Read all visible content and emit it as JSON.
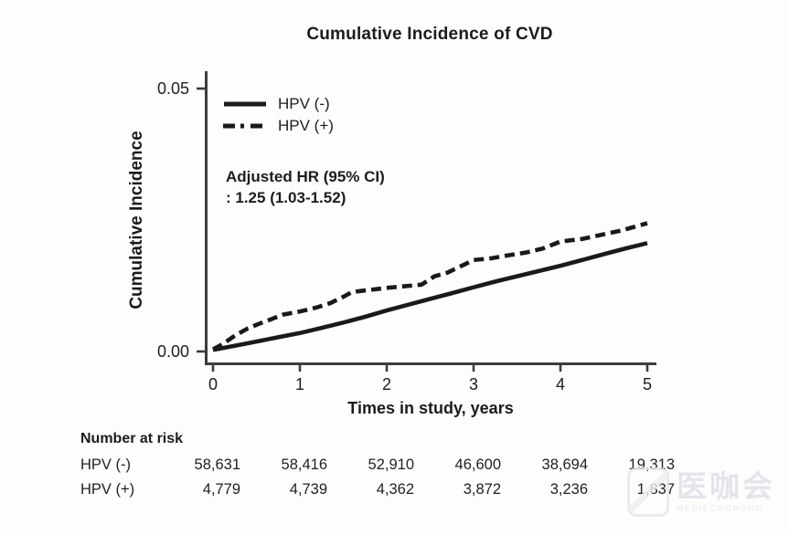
{
  "colors": {
    "background": "#fdfdfd",
    "curve": "#1a1a1a",
    "axis": "#3d3d3d",
    "text": "#1c1c1c",
    "watermark": "#e3e5ea"
  },
  "chart_data": {
    "type": "line",
    "title": "Cumulative Incidence of CVD",
    "xlabel": "Times in study, years",
    "ylabel": "Cumulative Incidence",
    "xlim": [
      0,
      5
    ],
    "ylim": [
      0,
      0.05
    ],
    "grid": false,
    "legend_position": "top-left-inside",
    "x_ticks": [
      0,
      1,
      2,
      3,
      4,
      5
    ],
    "y_ticks": [
      {
        "value": 0.0,
        "label": "0.00"
      },
      {
        "value": 0.05,
        "label": "0.05"
      }
    ],
    "annotation": [
      "Adjusted HR (95% CI)",
      ": 1.25 (1.03-1.52)"
    ],
    "series": [
      {
        "name": "HPV (-)",
        "style": "solid",
        "points": [
          [
            0,
            0.0003
          ],
          [
            0.25,
            0.0011
          ],
          [
            0.5,
            0.0019
          ],
          [
            0.75,
            0.0027
          ],
          [
            1.0,
            0.0035
          ],
          [
            1.25,
            0.0045
          ],
          [
            1.5,
            0.0055
          ],
          [
            1.75,
            0.0066
          ],
          [
            2.0,
            0.0078
          ],
          [
            2.25,
            0.0089
          ],
          [
            2.5,
            0.01
          ],
          [
            2.75,
            0.0111
          ],
          [
            3.0,
            0.0122
          ],
          [
            3.25,
            0.0133
          ],
          [
            3.5,
            0.0143
          ],
          [
            3.75,
            0.0153
          ],
          [
            4.0,
            0.0163
          ],
          [
            4.25,
            0.0174
          ],
          [
            4.5,
            0.0185
          ],
          [
            4.75,
            0.0196
          ],
          [
            5.0,
            0.0206
          ]
        ]
      },
      {
        "name": "HPV (+)",
        "style": "dashed",
        "points": [
          [
            0,
            0.0004
          ],
          [
            0.12,
            0.0015
          ],
          [
            0.25,
            0.003
          ],
          [
            0.4,
            0.0044
          ],
          [
            0.55,
            0.0054
          ],
          [
            0.68,
            0.0062
          ],
          [
            0.8,
            0.007
          ],
          [
            1.0,
            0.0076
          ],
          [
            1.2,
            0.0084
          ],
          [
            1.35,
            0.0092
          ],
          [
            1.5,
            0.0104
          ],
          [
            1.6,
            0.0113
          ],
          [
            1.8,
            0.0117
          ],
          [
            2.0,
            0.0121
          ],
          [
            2.2,
            0.0124
          ],
          [
            2.4,
            0.0127
          ],
          [
            2.55,
            0.0143
          ],
          [
            2.7,
            0.015
          ],
          [
            2.85,
            0.0162
          ],
          [
            3.0,
            0.0174
          ],
          [
            3.2,
            0.0177
          ],
          [
            3.4,
            0.0183
          ],
          [
            3.6,
            0.0188
          ],
          [
            3.8,
            0.0196
          ],
          [
            4.0,
            0.0209
          ],
          [
            4.25,
            0.0214
          ],
          [
            4.5,
            0.0223
          ],
          [
            4.7,
            0.023
          ],
          [
            4.85,
            0.0237
          ],
          [
            5.0,
            0.0244
          ]
        ]
      }
    ]
  },
  "risk_table": {
    "header": "Number at risk",
    "time_points": [
      0,
      1,
      2,
      3,
      4,
      5
    ],
    "rows": [
      {
        "label": "HPV (-)",
        "values": [
          "58,631",
          "58,416",
          "52,910",
          "46,600",
          "38,694",
          "19,313"
        ]
      },
      {
        "label": "HPV (+)",
        "values": [
          "4,779",
          "4,739",
          "4,362",
          "3,872",
          "3,236",
          "1,837"
        ]
      }
    ]
  },
  "watermark": {
    "logo": "mediecogroup-logo",
    "text": "医咖会",
    "subtext": "MEDIECOGROUP"
  }
}
